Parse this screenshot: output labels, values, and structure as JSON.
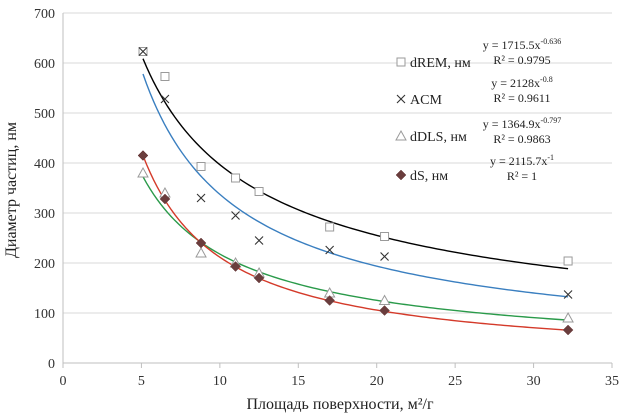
{
  "chart_data": {
    "type": "scatter",
    "title": "",
    "xlabel": "Площадь поверхности, м²/г",
    "ylabel": "Диаметр частиц, нм",
    "xlim": [
      0,
      35
    ],
    "ylim": [
      0,
      700
    ],
    "xticks": [
      "0",
      "5",
      "10",
      "15",
      "20",
      "25",
      "30",
      "35"
    ],
    "yticks": [
      "0",
      "100",
      "200",
      "300",
      "400",
      "500",
      "600",
      "700"
    ],
    "grid": "horizontal",
    "legend": "right",
    "series": [
      {
        "name": "dREM, нм",
        "marker": "open-square",
        "marker_color": "#9a9a9a",
        "trend_color": "#000000",
        "x": [
          5.1,
          6.5,
          8.8,
          11.0,
          12.5,
          17.0,
          20.5,
          32.2
        ],
        "y": [
          623,
          573,
          393,
          370,
          343,
          272,
          253,
          204
        ],
        "trend": {
          "a": 1715.5,
          "b": -0.636
        },
        "equation": {
          "prefix": "y = 1715.5x",
          "exponent": "-0.636",
          "r2": "R² = 0.9795"
        }
      },
      {
        "name": "ACM",
        "marker": "cross",
        "marker_color": "#333333",
        "trend_color": "#3a7fc0",
        "x": [
          5.1,
          6.5,
          8.8,
          11.0,
          12.5,
          17.0,
          20.5,
          32.2
        ],
        "y": [
          623,
          528,
          330,
          295,
          245,
          226,
          213,
          137
        ],
        "trend": {
          "a": 2128,
          "b": -0.8
        },
        "equation": {
          "prefix": "y = 2128x",
          "exponent": "-0.8",
          "r2": "R² = 0.9611"
        }
      },
      {
        "name": "dDLS, нм",
        "marker": "open-triangle",
        "marker_color": "#9a9a9a",
        "trend_color": "#2a9a4a",
        "x": [
          5.1,
          6.5,
          8.8,
          11.0,
          12.5,
          17.0,
          20.5,
          32.2
        ],
        "y": [
          380,
          340,
          220,
          200,
          180,
          140,
          125,
          90
        ],
        "trend": {
          "a": 1364.9,
          "b": -0.797
        },
        "equation": {
          "prefix": "y = 1364.9x",
          "exponent": "-0.797",
          "r2": "R² = 0.9863"
        }
      },
      {
        "name": "dS, нм",
        "marker": "filled-diamond",
        "marker_color": "#6a3d3d",
        "trend_color": "#d43a2a",
        "x": [
          5.1,
          6.5,
          8.8,
          11.0,
          12.5,
          17.0,
          20.5,
          32.2
        ],
        "y": [
          415,
          328,
          240,
          193,
          170,
          125,
          105,
          66
        ],
        "trend": {
          "a": 2115.7,
          "b": -1
        },
        "equation": {
          "prefix": "y = 2115.7x",
          "exponent": "-1",
          "r2": "R² = 1"
        }
      }
    ]
  }
}
